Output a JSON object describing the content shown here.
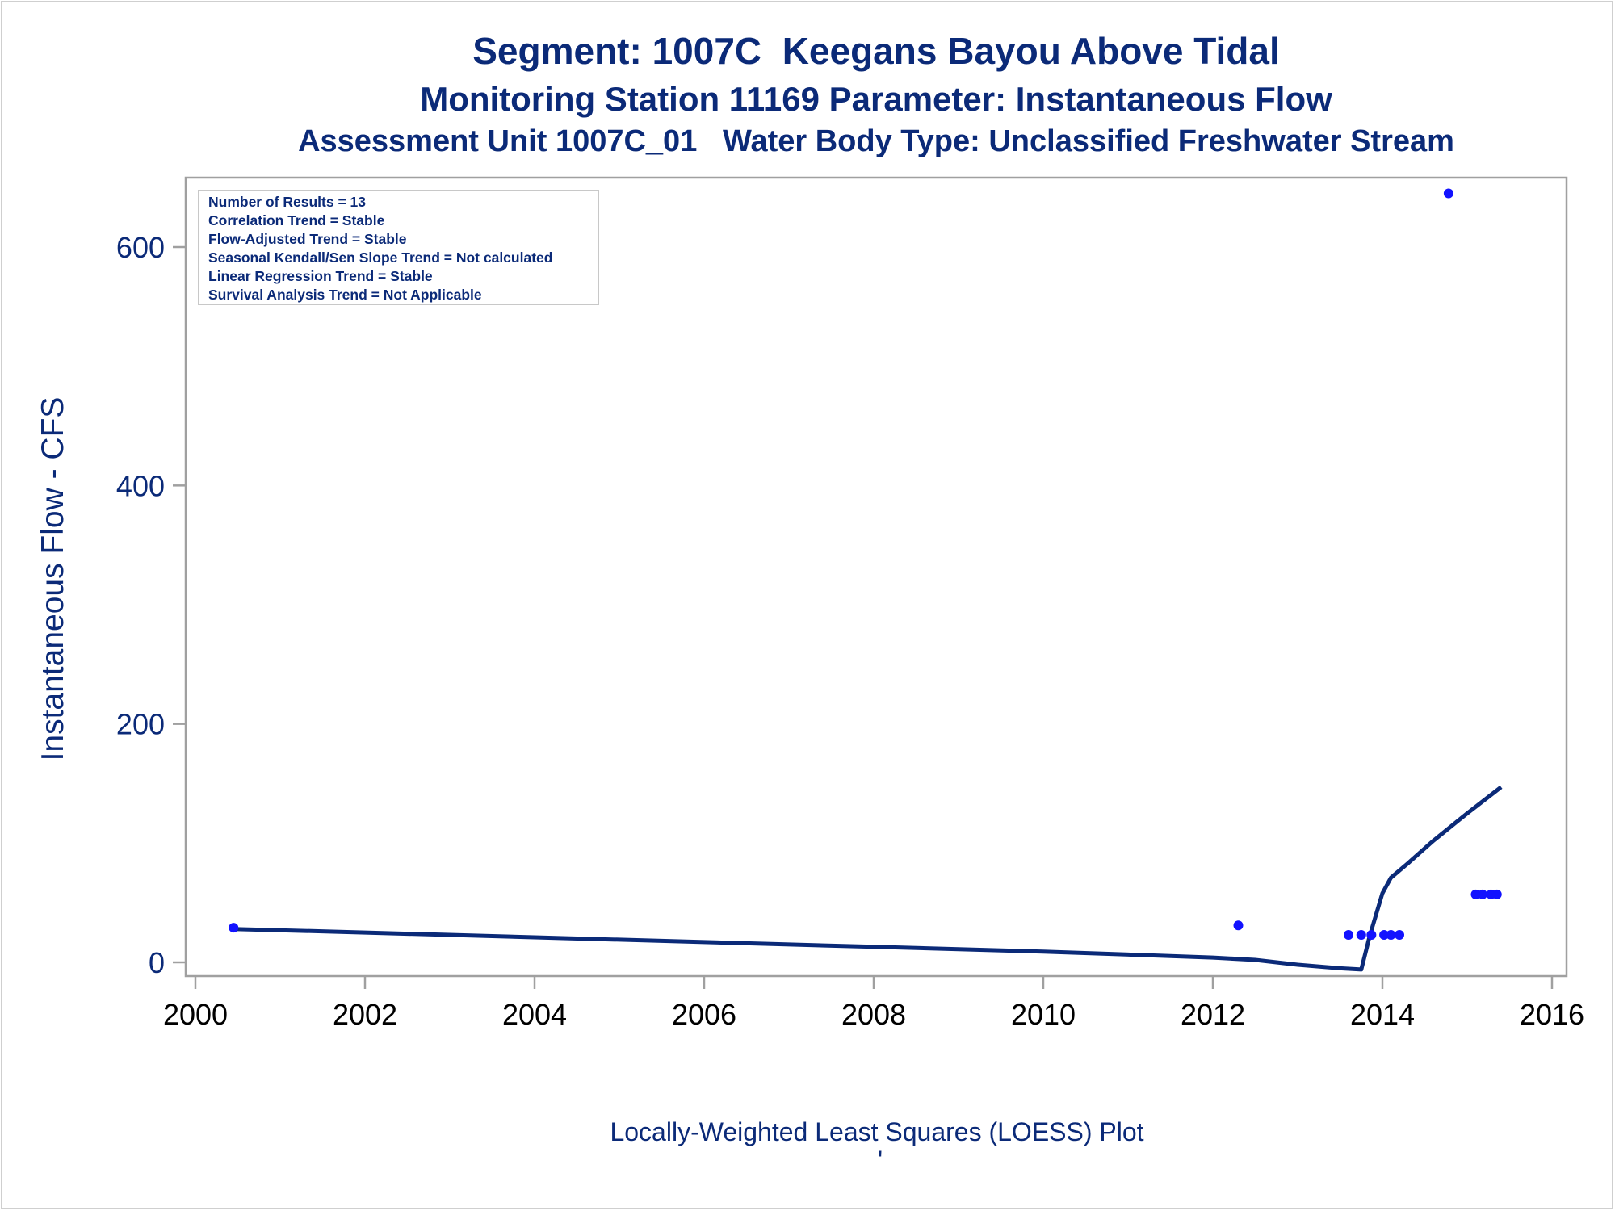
{
  "titles": {
    "line1": "Segment: 1007C  Keegans Bayou Above Tidal",
    "line2": "Monitoring Station 11169 Parameter: Instantaneous Flow",
    "line3": "Assessment Unit 1007C_01   Water Body Type: Unclassified Freshwater Stream"
  },
  "footnote": "Locally-Weighted Least Squares (LOESS) Plot",
  "footnote_mark": "'",
  "colors": {
    "text": "#0b2a78",
    "points": "#1212ff",
    "loess_line": "#0b2a78",
    "frame": "#a0a0a0"
  },
  "chart_data": {
    "type": "scatter",
    "ylabel": "Instantaneous Flow - CFS",
    "xlabel": "",
    "xlim": [
      2000,
      2016
    ],
    "ylim": [
      -12,
      655
    ],
    "x_ticks": [
      2000,
      2002,
      2004,
      2006,
      2008,
      2010,
      2012,
      2014,
      2016
    ],
    "y_ticks": [
      0,
      200,
      400,
      600
    ],
    "grid": false,
    "legend": "none",
    "stats_box": [
      "Number of Results = 13",
      "Correlation Trend = Stable",
      "Flow-Adjusted Trend = Stable",
      "Seasonal Kendall/Sen Slope Trend = Not calculated",
      "Linear Regression Trend = Stable",
      "Survival Analysis Trend = Not Applicable"
    ],
    "series": [
      {
        "kind": "points",
        "x": [
          2000.45,
          2012.3,
          2013.6,
          2013.75,
          2013.87,
          2014.02,
          2014.1,
          2014.2,
          2014.78,
          2015.1,
          2015.18,
          2015.28,
          2015.35
        ],
        "y": [
          29,
          31,
          23,
          23,
          23,
          23,
          23,
          23,
          645,
          57,
          57,
          57,
          57
        ]
      },
      {
        "kind": "loess",
        "x": [
          2000.45,
          2002,
          2004,
          2006,
          2008,
          2010,
          2012,
          2012.5,
          2013,
          2013.5,
          2013.75,
          2013.85,
          2014.0,
          2014.1,
          2014.3,
          2014.6,
          2015.0,
          2015.4
        ],
        "y": [
          28,
          25,
          21,
          17,
          13,
          9,
          4,
          2,
          -2,
          -5,
          -6,
          22,
          58,
          71,
          83,
          102,
          125,
          147
        ]
      }
    ]
  }
}
